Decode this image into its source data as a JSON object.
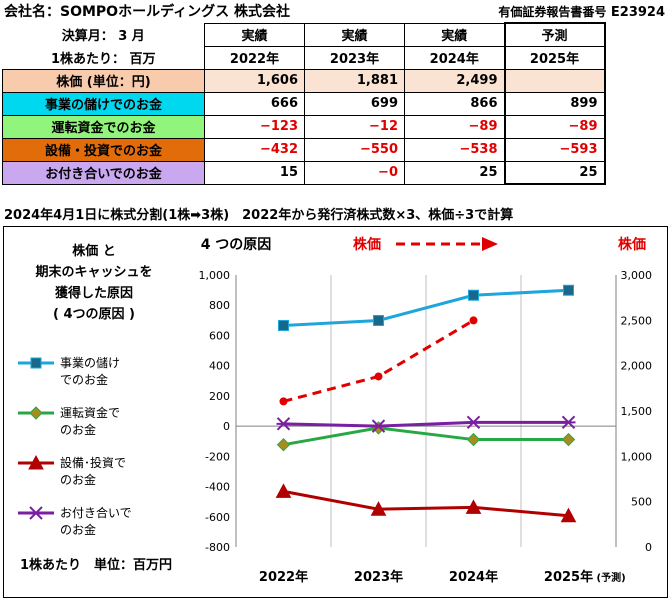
{
  "header": {
    "company_label": "会社名：SOMPOホールディングス 株式会社",
    "filing_label": "有価証券報告書番号",
    "filing_code": "E23924"
  },
  "table": {
    "fiscal_month_label": "決算月： 3 月",
    "unit_label": "1株あたり： 百万",
    "columns": [
      {
        "type": "実績",
        "year": "2022年"
      },
      {
        "type": "実績",
        "year": "2023年"
      },
      {
        "type": "実績",
        "year": "2024年"
      },
      {
        "type": "予測",
        "year": "2025年"
      }
    ],
    "rows": [
      {
        "label": "株価 (単位：円)",
        "values": [
          "1,606",
          "1,881",
          "2,499",
          ""
        ]
      },
      {
        "label": "事業の儲けでのお金",
        "values": [
          "666",
          "699",
          "866",
          "899"
        ]
      },
      {
        "label": "運転資金でのお金",
        "values": [
          "−123",
          "−12",
          "−89",
          "−89"
        ]
      },
      {
        "label": "設備・投資でのお金",
        "values": [
          "−432",
          "−550",
          "−538",
          "−593"
        ]
      },
      {
        "label": "お付き合いでのお金",
        "values": [
          "15",
          "−0",
          "25",
          "25"
        ]
      }
    ]
  },
  "note": "2024年4月1日に株式分割(1株➡3株)　2022年から発行済株式数×3、株価÷3で計算",
  "chart_text": {
    "box_title": [
      "株価 と",
      "期末のキャッシュを",
      "獲得した原因",
      "( 4つの原因 )"
    ],
    "four_causes": "4 つの原因",
    "stock_price_arrow_label": "株価",
    "stock_price_axis_label": "株価",
    "unit_note": "1株あたり　単位：百万円",
    "legend": [
      {
        "line1": "事業の儲け",
        "line2": "でのお金"
      },
      {
        "line1": "運転資金で",
        "line2": "のお金"
      },
      {
        "line1": "設備･投資で",
        "line2": "のお金"
      },
      {
        "line1": "お付き合いで",
        "line2": "のお金"
      }
    ],
    "forecast_suffix": "(予測)"
  },
  "chart_data": {
    "type": "line",
    "categories": [
      "2022年",
      "2023年",
      "2024年",
      "2025年"
    ],
    "y_left": {
      "min": -800,
      "max": 1000,
      "step": 200,
      "ticks": [
        "-800",
        "-600",
        "-400",
        "-200",
        "0",
        "200",
        "400",
        "600",
        "800",
        "1,000"
      ]
    },
    "y_right": {
      "min": 0,
      "max": 3000,
      "step": 500,
      "ticks": [
        "0",
        "500",
        "1,000",
        "1,500",
        "2,000",
        "2,500",
        "3,000"
      ]
    },
    "series": [
      {
        "name": "事業の儲けでのお金",
        "values": [
          666,
          699,
          866,
          899
        ],
        "color": "#1ea6dc",
        "marker": "square",
        "axis": "left"
      },
      {
        "name": "運転資金でのお金",
        "values": [
          -123,
          -12,
          -89,
          -89
        ],
        "color": "#27a845",
        "marker": "diamond",
        "axis": "left"
      },
      {
        "name": "設備・投資でのお金",
        "values": [
          -432,
          -550,
          -538,
          -593
        ],
        "color": "#b00000",
        "marker": "triangle",
        "axis": "left"
      },
      {
        "name": "お付き合いでのお金",
        "values": [
          15,
          0,
          25,
          25
        ],
        "color": "#7a1fa2",
        "marker": "star",
        "axis": "left"
      },
      {
        "name": "株価",
        "values": [
          1606,
          1881,
          2499,
          null
        ],
        "color": "#e00000",
        "marker": "dot",
        "dashed": true,
        "axis": "right"
      }
    ],
    "grid": "vertical"
  }
}
